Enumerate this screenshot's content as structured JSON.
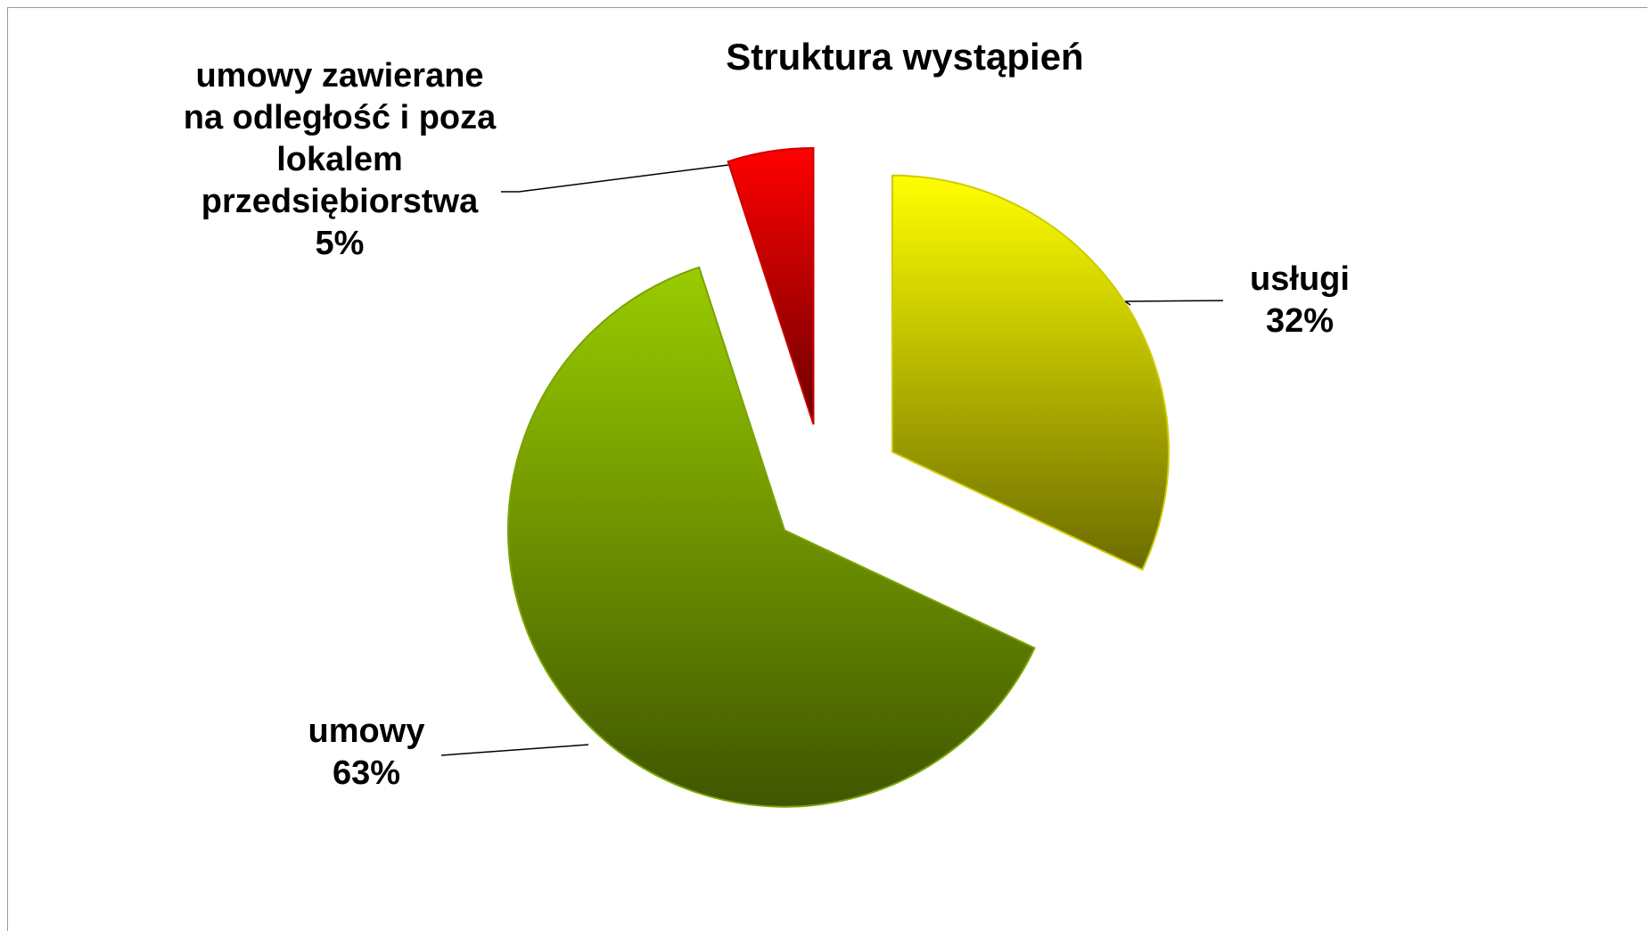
{
  "chart_data": {
    "type": "pie",
    "title": "Struktura wystąpień",
    "categories": [
      "usługi",
      "umowy",
      "umowy zawierane na odległość i poza lokalem przedsiębiorstwa"
    ],
    "values": [
      32,
      63,
      5
    ],
    "value_labels": [
      "32%",
      "63%",
      "5%"
    ],
    "colors": [
      "#ffff00",
      "#99cc00",
      "#ff0000"
    ]
  }
}
